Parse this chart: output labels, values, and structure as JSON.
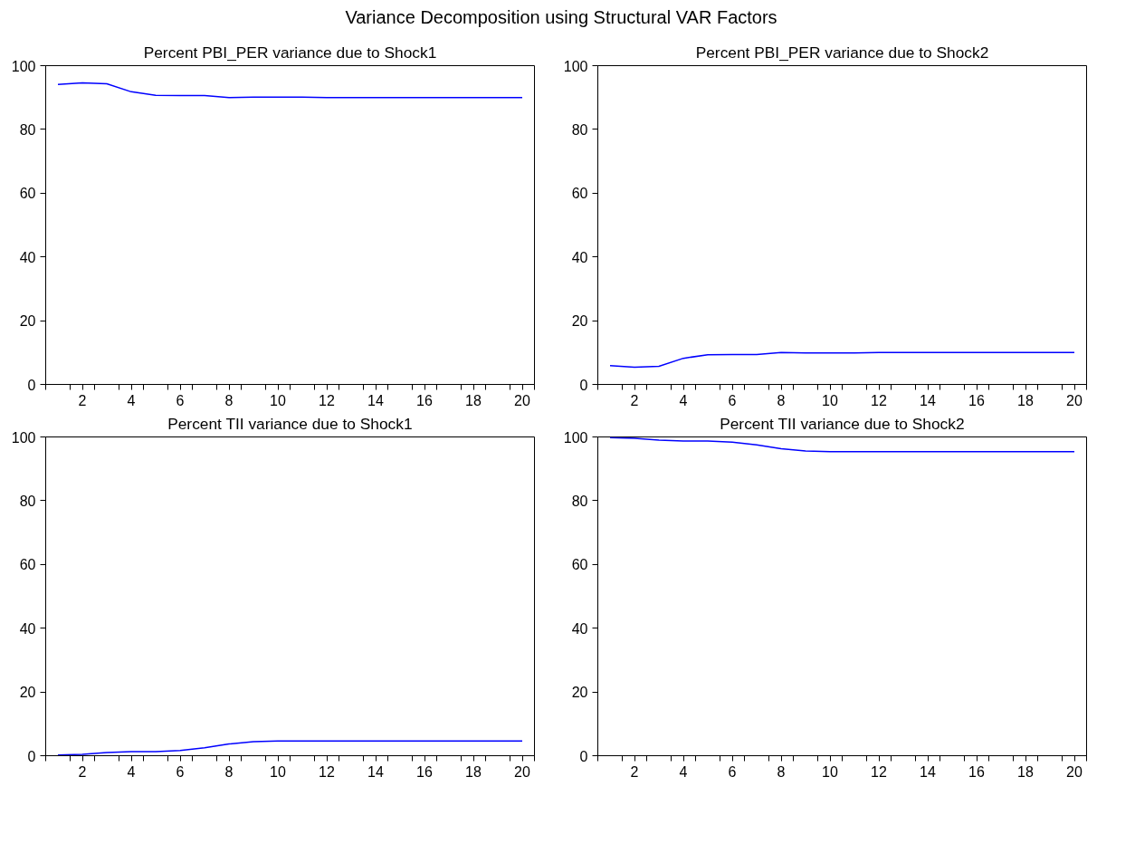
{
  "chart_data": [
    {
      "type": "line",
      "title": "Percent PBI_PER variance due to Shock1",
      "annotations": [
        "Variance Decomposition using Structural VAR Factors"
      ],
      "x": [
        1,
        2,
        3,
        4,
        5,
        6,
        7,
        8,
        9,
        10,
        11,
        12,
        13,
        14,
        15,
        16,
        17,
        18,
        19,
        20
      ],
      "series": [
        {
          "color": "#0000ff",
          "values": [
            94.1,
            94.6,
            94.3,
            91.8,
            90.7,
            90.6,
            90.6,
            90.0,
            90.1,
            90.1,
            90.1,
            90.0,
            90.0,
            90.0,
            90.0,
            90.0,
            90.0,
            90.0,
            90.0,
            90.0
          ]
        }
      ],
      "xlim": [
        0.5,
        20.5
      ],
      "ylim": [
        0,
        100
      ],
      "yticks": [
        0,
        20,
        40,
        60,
        80,
        100
      ],
      "xticks": [
        {
          "value": 0.5,
          "label": null
        },
        {
          "value": 1.5,
          "label": null
        },
        2,
        {
          "value": 2.5,
          "label": null
        },
        {
          "value": 3.5,
          "label": null
        },
        4,
        {
          "value": 4.5,
          "label": null
        },
        {
          "value": 5.5,
          "label": null
        },
        6,
        {
          "value": 6.5,
          "label": null
        },
        {
          "value": 7.5,
          "label": null
        },
        8,
        {
          "value": 8.5,
          "label": null
        },
        {
          "value": 9.5,
          "label": null
        },
        10,
        {
          "value": 10.5,
          "label": null
        },
        {
          "value": 11.5,
          "label": null
        },
        12,
        {
          "value": 12.5,
          "label": null
        },
        {
          "value": 13.5,
          "label": null
        },
        14,
        {
          "value": 14.5,
          "label": null
        },
        {
          "value": 15.5,
          "label": null
        },
        16,
        {
          "value": 16.5,
          "label": null
        },
        {
          "value": 17.5,
          "label": null
        },
        18,
        {
          "value": 18.5,
          "label": null
        },
        {
          "value": 19.5,
          "label": null
        },
        20,
        {
          "value": 20.5,
          "label": null
        }
      ],
      "grid": false
    },
    {
      "type": "line",
      "title": "Percent PBI_PER variance due to Shock2",
      "x": [
        1,
        2,
        3,
        4,
        5,
        6,
        7,
        8,
        9,
        10,
        11,
        12,
        13,
        14,
        15,
        16,
        17,
        18,
        19,
        20
      ],
      "series": [
        {
          "color": "#0000ff",
          "values": [
            5.9,
            5.4,
            5.7,
            8.2,
            9.3,
            9.4,
            9.4,
            10.0,
            9.9,
            9.9,
            9.9,
            10.0,
            10.0,
            10.0,
            10.0,
            10.0,
            10.0,
            10.0,
            10.0,
            10.0
          ]
        }
      ],
      "xlim": [
        0.5,
        20.5
      ],
      "ylim": [
        0,
        100
      ],
      "yticks": [
        0,
        20,
        40,
        60,
        80,
        100
      ],
      "xticks": [
        {
          "value": 0.5,
          "label": null
        },
        {
          "value": 1.5,
          "label": null
        },
        2,
        {
          "value": 2.5,
          "label": null
        },
        {
          "value": 3.5,
          "label": null
        },
        4,
        {
          "value": 4.5,
          "label": null
        },
        {
          "value": 5.5,
          "label": null
        },
        6,
        {
          "value": 6.5,
          "label": null
        },
        {
          "value": 7.5,
          "label": null
        },
        8,
        {
          "value": 8.5,
          "label": null
        },
        {
          "value": 9.5,
          "label": null
        },
        10,
        {
          "value": 10.5,
          "label": null
        },
        {
          "value": 11.5,
          "label": null
        },
        12,
        {
          "value": 12.5,
          "label": null
        },
        {
          "value": 13.5,
          "label": null
        },
        14,
        {
          "value": 14.5,
          "label": null
        },
        {
          "value": 15.5,
          "label": null
        },
        16,
        {
          "value": 16.5,
          "label": null
        },
        {
          "value": 17.5,
          "label": null
        },
        18,
        {
          "value": 18.5,
          "label": null
        },
        {
          "value": 19.5,
          "label": null
        },
        20,
        {
          "value": 20.5,
          "label": null
        }
      ],
      "grid": false
    },
    {
      "type": "line",
      "title": "Percent TII variance due to Shock1",
      "x": [
        1,
        2,
        3,
        4,
        5,
        6,
        7,
        8,
        9,
        10,
        11,
        12,
        13,
        14,
        15,
        16,
        17,
        18,
        19,
        20
      ],
      "series": [
        {
          "color": "#0000ff",
          "values": [
            0.2,
            0.4,
            1.0,
            1.3,
            1.3,
            1.6,
            2.5,
            3.7,
            4.4,
            4.6,
            4.6,
            4.6,
            4.6,
            4.6,
            4.6,
            4.6,
            4.6,
            4.6,
            4.6,
            4.6
          ]
        }
      ],
      "xlim": [
        0.5,
        20.5
      ],
      "ylim": [
        0,
        100
      ],
      "yticks": [
        0,
        20,
        40,
        60,
        80,
        100
      ],
      "xticks": [
        {
          "value": 0.5,
          "label": null
        },
        {
          "value": 1.5,
          "label": null
        },
        2,
        {
          "value": 2.5,
          "label": null
        },
        {
          "value": 3.5,
          "label": null
        },
        4,
        {
          "value": 4.5,
          "label": null
        },
        {
          "value": 5.5,
          "label": null
        },
        6,
        {
          "value": 6.5,
          "label": null
        },
        {
          "value": 7.5,
          "label": null
        },
        8,
        {
          "value": 8.5,
          "label": null
        },
        {
          "value": 9.5,
          "label": null
        },
        10,
        {
          "value": 10.5,
          "label": null
        },
        {
          "value": 11.5,
          "label": null
        },
        12,
        {
          "value": 12.5,
          "label": null
        },
        {
          "value": 13.5,
          "label": null
        },
        14,
        {
          "value": 14.5,
          "label": null
        },
        {
          "value": 15.5,
          "label": null
        },
        16,
        {
          "value": 16.5,
          "label": null
        },
        {
          "value": 17.5,
          "label": null
        },
        18,
        {
          "value": 18.5,
          "label": null
        },
        {
          "value": 19.5,
          "label": null
        },
        20,
        {
          "value": 20.5,
          "label": null
        }
      ],
      "grid": false
    },
    {
      "type": "line",
      "title": "Percent TII variance due to Shock2",
      "x": [
        1,
        2,
        3,
        4,
        5,
        6,
        7,
        8,
        9,
        10,
        11,
        12,
        13,
        14,
        15,
        16,
        17,
        18,
        19,
        20
      ],
      "series": [
        {
          "color": "#0000ff",
          "values": [
            99.8,
            99.6,
            99.0,
            98.7,
            98.7,
            98.4,
            97.5,
            96.3,
            95.6,
            95.4,
            95.4,
            95.4,
            95.4,
            95.4,
            95.4,
            95.4,
            95.4,
            95.4,
            95.4,
            95.4
          ]
        }
      ],
      "xlim": [
        0.5,
        20.5
      ],
      "ylim": [
        0,
        100
      ],
      "yticks": [
        0,
        20,
        40,
        60,
        80,
        100
      ],
      "xticks": [
        {
          "value": 0.5,
          "label": null
        },
        {
          "value": 1.5,
          "label": null
        },
        2,
        {
          "value": 2.5,
          "label": null
        },
        {
          "value": 3.5,
          "label": null
        },
        4,
        {
          "value": 4.5,
          "label": null
        },
        {
          "value": 5.5,
          "label": null
        },
        6,
        {
          "value": 6.5,
          "label": null
        },
        {
          "value": 7.5,
          "label": null
        },
        8,
        {
          "value": 8.5,
          "label": null
        },
        {
          "value": 9.5,
          "label": null
        },
        10,
        {
          "value": 10.5,
          "label": null
        },
        {
          "value": 11.5,
          "label": null
        },
        12,
        {
          "value": 12.5,
          "label": null
        },
        {
          "value": 13.5,
          "label": null
        },
        14,
        {
          "value": 14.5,
          "label": null
        },
        {
          "value": 15.5,
          "label": null
        },
        16,
        {
          "value": 16.5,
          "label": null
        },
        {
          "value": 17.5,
          "label": null
        },
        18,
        {
          "value": 18.5,
          "label": null
        },
        {
          "value": 19.5,
          "label": null
        },
        20,
        {
          "value": 20.5,
          "label": null
        }
      ],
      "grid": false
    }
  ]
}
